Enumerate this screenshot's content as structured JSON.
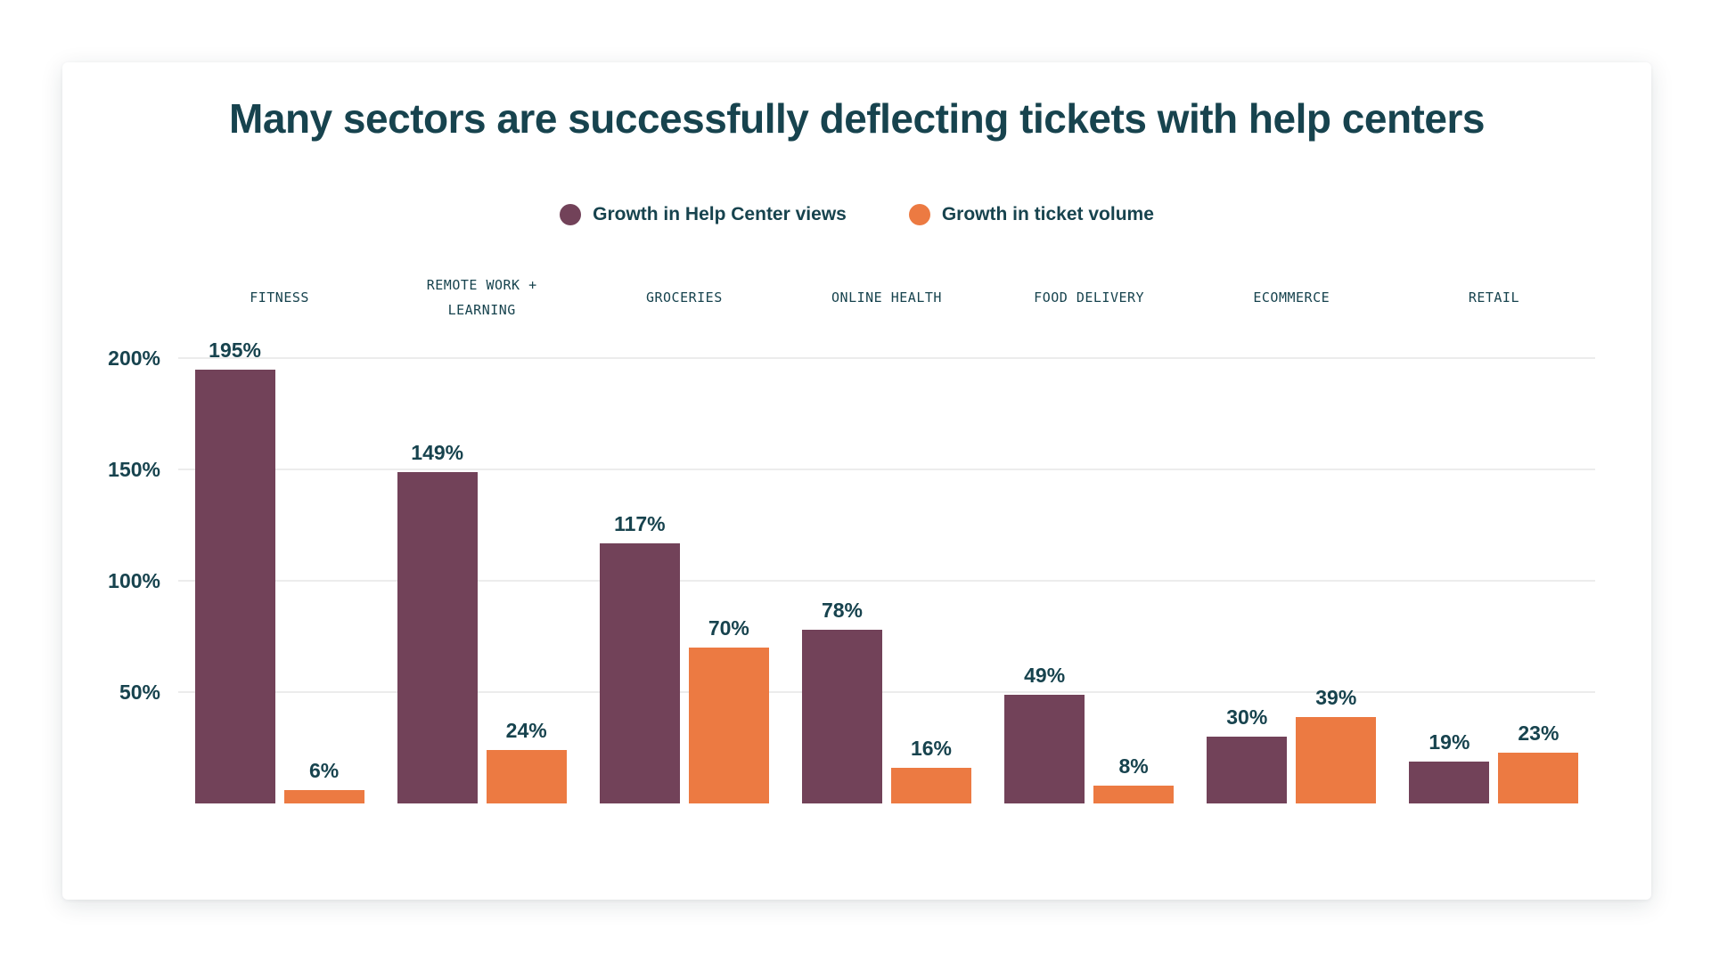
{
  "title": "Many sectors are successfully deflecting tickets with help centers",
  "colors": {
    "text": "#17434E",
    "grid": "#ECECEC",
    "background": "#FFFFFF",
    "help_center_views": "#724259",
    "ticket_volume": "#EC7A42"
  },
  "chart_data": {
    "type": "bar",
    "title": "Many sectors are successfully deflecting tickets with help centers",
    "categories": [
      "FITNESS",
      "REMOTE WORK +\nLEARNING",
      "GROCERIES",
      "ONLINE HEALTH",
      "FOOD DELIVERY",
      "ECOMMERCE",
      "RETAIL"
    ],
    "series": [
      {
        "name": "Growth in Help Center views",
        "color": "#724259",
        "values": [
          195,
          149,
          117,
          78,
          49,
          30,
          19
        ],
        "labels": [
          "195%",
          "149%",
          "117%",
          "78%",
          "49%",
          "30%",
          "19%"
        ]
      },
      {
        "name": "Growth in ticket volume",
        "color": "#EC7A42",
        "values": [
          6,
          24,
          70,
          16,
          8,
          39,
          23
        ],
        "labels": [
          "6%",
          "24%",
          "70%",
          "16%",
          "8%",
          "39%",
          "23%"
        ]
      }
    ],
    "value_suffix": "%",
    "y_ticks": [
      "200%",
      "150%",
      "100%",
      "50%"
    ],
    "y_tick_values": [
      200,
      150,
      100,
      50
    ],
    "ylim": [
      0,
      210
    ],
    "grid": "horizontal",
    "legend_position": "top-center",
    "data_labels": true
  }
}
